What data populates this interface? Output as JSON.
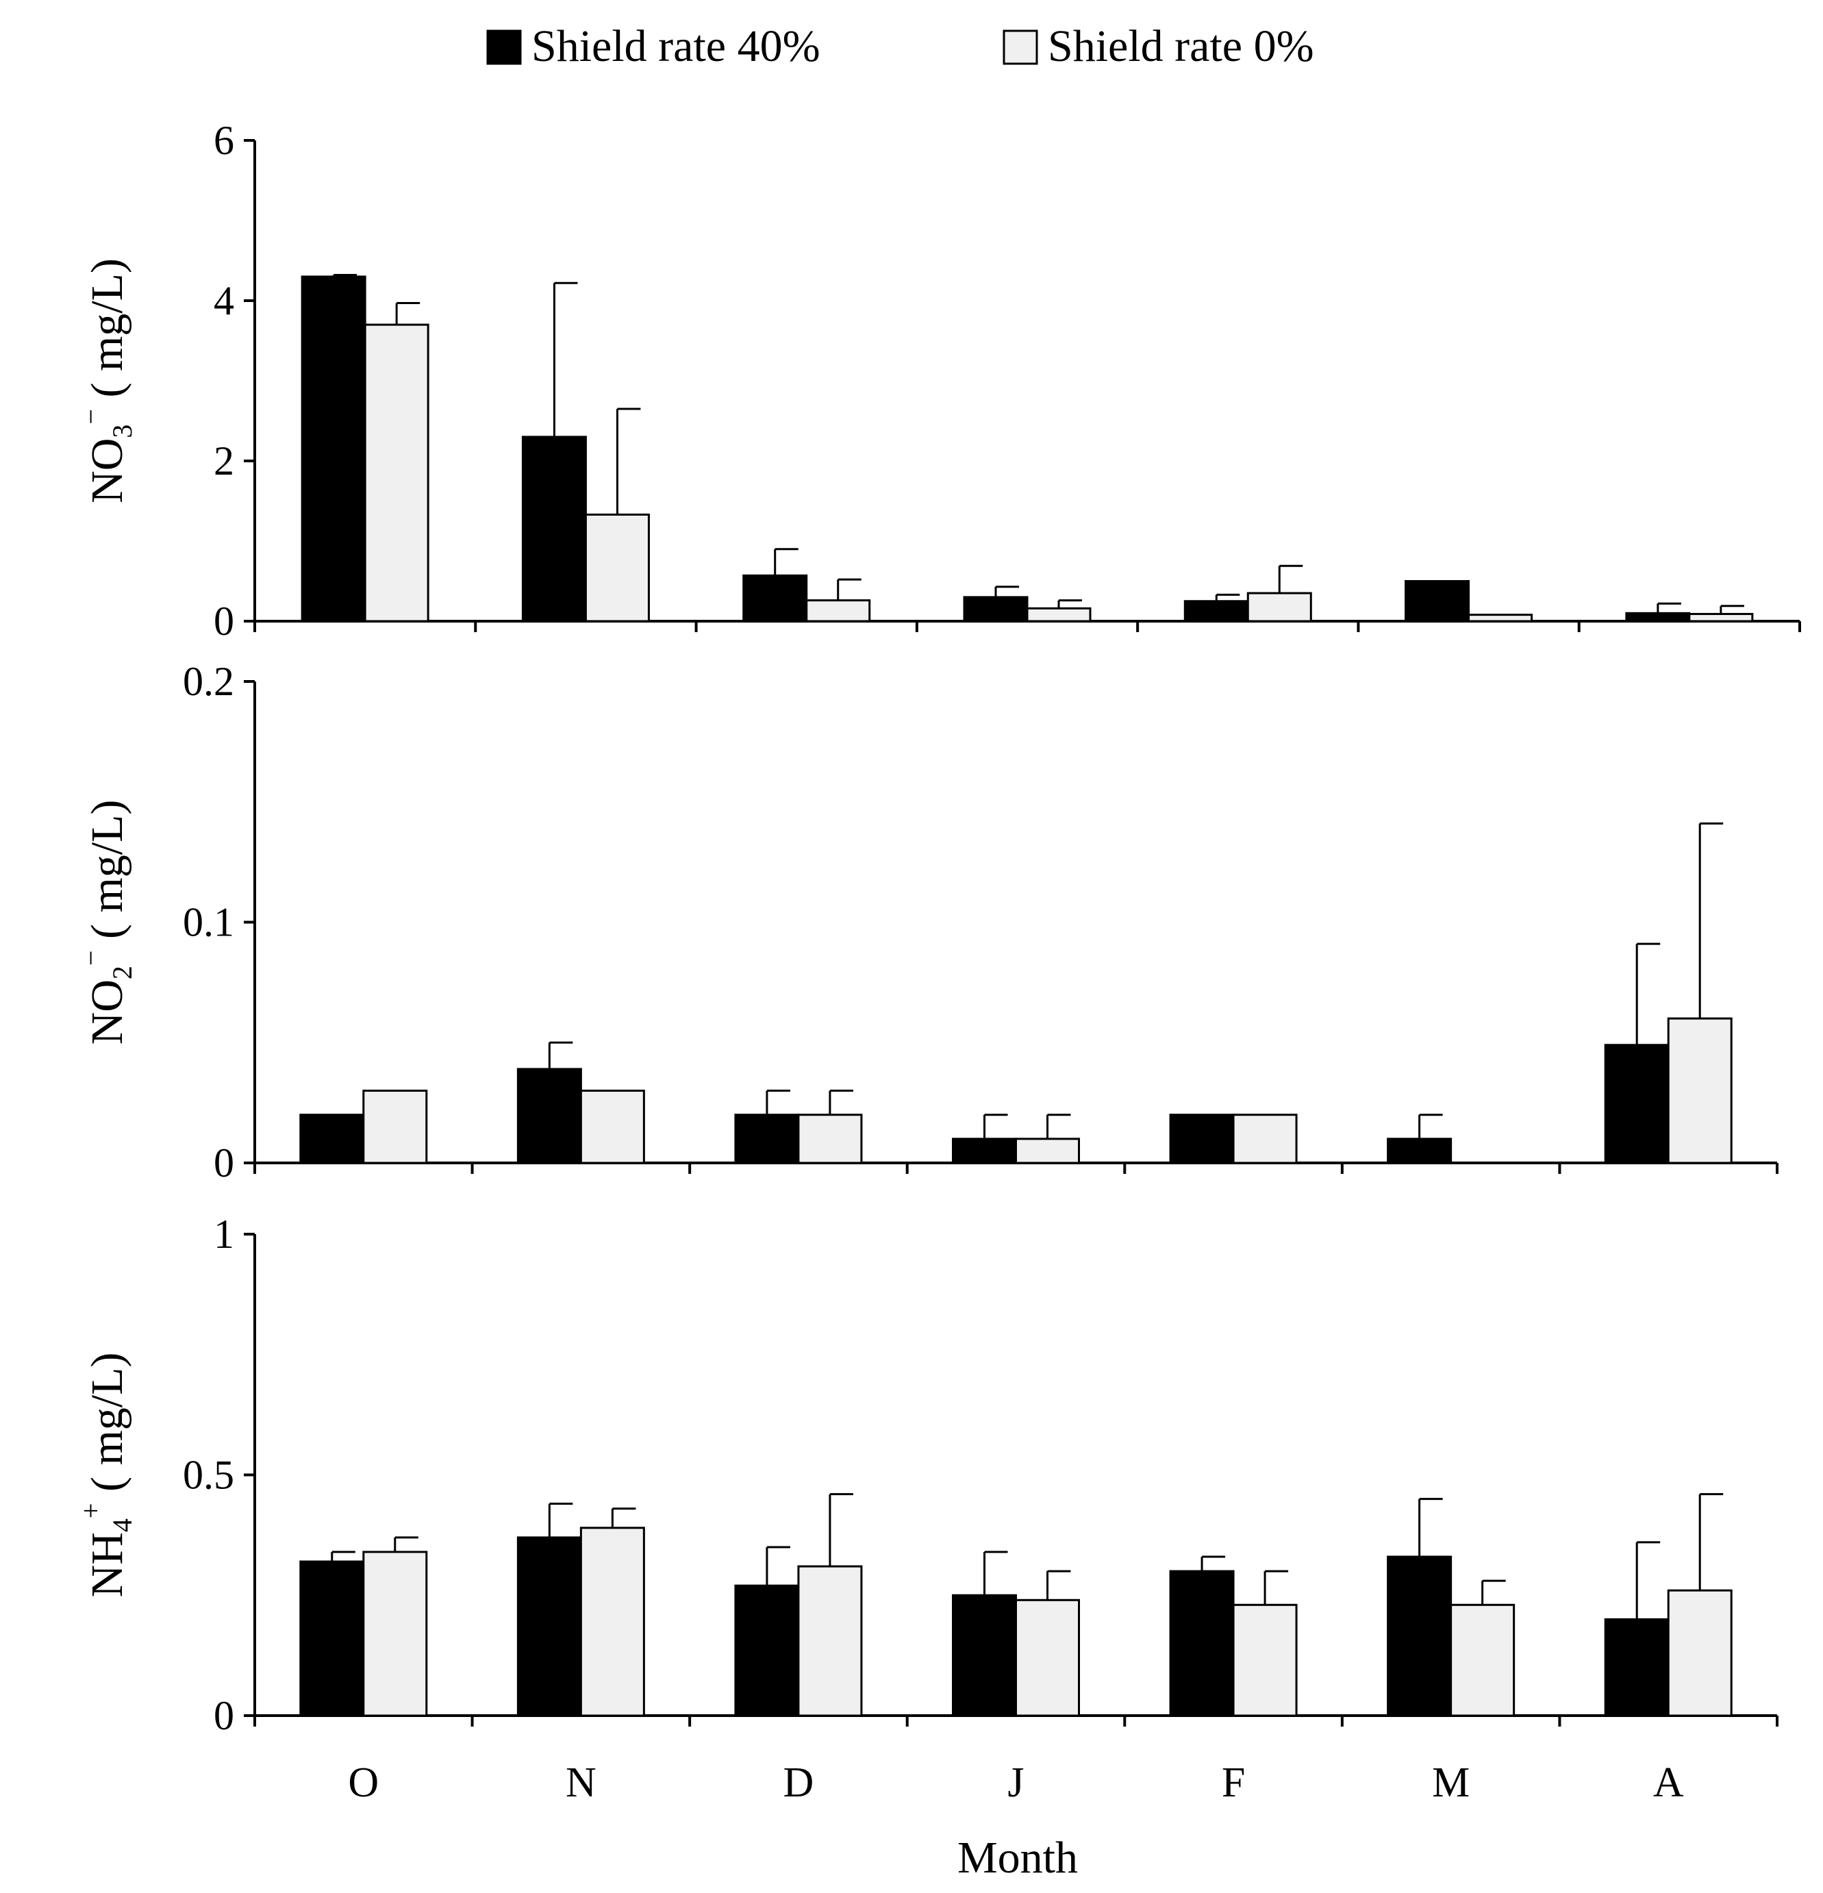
{
  "legend": {
    "series1": "Shield rate 40%",
    "series2": "Shield rate 0%"
  },
  "xlabel": "Month",
  "chart_data": [
    {
      "type": "bar",
      "id": "no3",
      "ylabel": {
        "base": "NO",
        "sub": "3",
        "sup": "−",
        "unit": "( mg/L)"
      },
      "categories": [
        "O",
        "N",
        "D",
        "J",
        "F",
        "M",
        "A"
      ],
      "ylim": [
        0,
        6
      ],
      "yticks": [
        "0",
        "2",
        "4",
        "6"
      ],
      "ytick_values": [
        0,
        2,
        4,
        6
      ],
      "series": [
        {
          "name": "Shield rate 40%",
          "color": "#000000",
          "values": [
            4.3,
            2.3,
            0.57,
            0.3,
            0.25,
            0.5,
            0.1
          ],
          "errors": [
            0.02,
            1.92,
            0.33,
            0.13,
            0.08,
            0,
            0.12
          ]
        },
        {
          "name": "Shield rate 0%",
          "color": "#f0f0f0",
          "values": [
            3.7,
            1.33,
            0.26,
            0.16,
            0.35,
            0.08,
            0.09
          ],
          "errors": [
            0.27,
            1.32,
            0.26,
            0.1,
            0.34,
            0,
            0.1
          ]
        }
      ]
    },
    {
      "type": "bar",
      "id": "no2",
      "ylabel": {
        "base": "NO",
        "sub": "2",
        "sup": "−",
        "unit": "( mg/L)"
      },
      "categories": [
        "O",
        "N",
        "D",
        "J",
        "F",
        "M",
        "A"
      ],
      "ylim": [
        0,
        0.2
      ],
      "yticks": [
        "0",
        "0.1",
        "0.2"
      ],
      "ytick_values": [
        0,
        0.1,
        0.2
      ],
      "series": [
        {
          "name": "Shield rate 40%",
          "color": "#000000",
          "values": [
            0.02,
            0.039,
            0.02,
            0.01,
            0.02,
            0.01,
            0.049
          ],
          "errors": [
            0,
            0.011,
            0.01,
            0.01,
            0,
            0.01,
            0.042
          ]
        },
        {
          "name": "Shield rate 0%",
          "color": "#f0f0f0",
          "values": [
            0.03,
            0.03,
            0.02,
            0.01,
            0.02,
            0,
            0.06
          ],
          "errors": [
            0,
            0,
            0.01,
            0.01,
            0,
            0,
            0.081
          ]
        }
      ]
    },
    {
      "type": "bar",
      "id": "nh4",
      "ylabel": {
        "base": "NH",
        "sub": "4",
        "sup": "+",
        "unit": "( mg/L)"
      },
      "categories": [
        "O",
        "N",
        "D",
        "J",
        "F",
        "M",
        "A"
      ],
      "ylim": [
        0,
        1
      ],
      "yticks": [
        "0",
        "0.5",
        "1"
      ],
      "ytick_values": [
        0,
        0.5,
        1
      ],
      "series": [
        {
          "name": "Shield rate 40%",
          "color": "#000000",
          "values": [
            0.32,
            0.37,
            0.27,
            0.25,
            0.3,
            0.33,
            0.2
          ],
          "errors": [
            0.02,
            0.07,
            0.08,
            0.09,
            0.03,
            0.12,
            0.16
          ]
        },
        {
          "name": "Shield rate 0%",
          "color": "#f0f0f0",
          "values": [
            0.34,
            0.39,
            0.31,
            0.24,
            0.23,
            0.23,
            0.26
          ],
          "errors": [
            0.03,
            0.04,
            0.15,
            0.06,
            0.07,
            0.05,
            0.2
          ]
        }
      ]
    }
  ]
}
